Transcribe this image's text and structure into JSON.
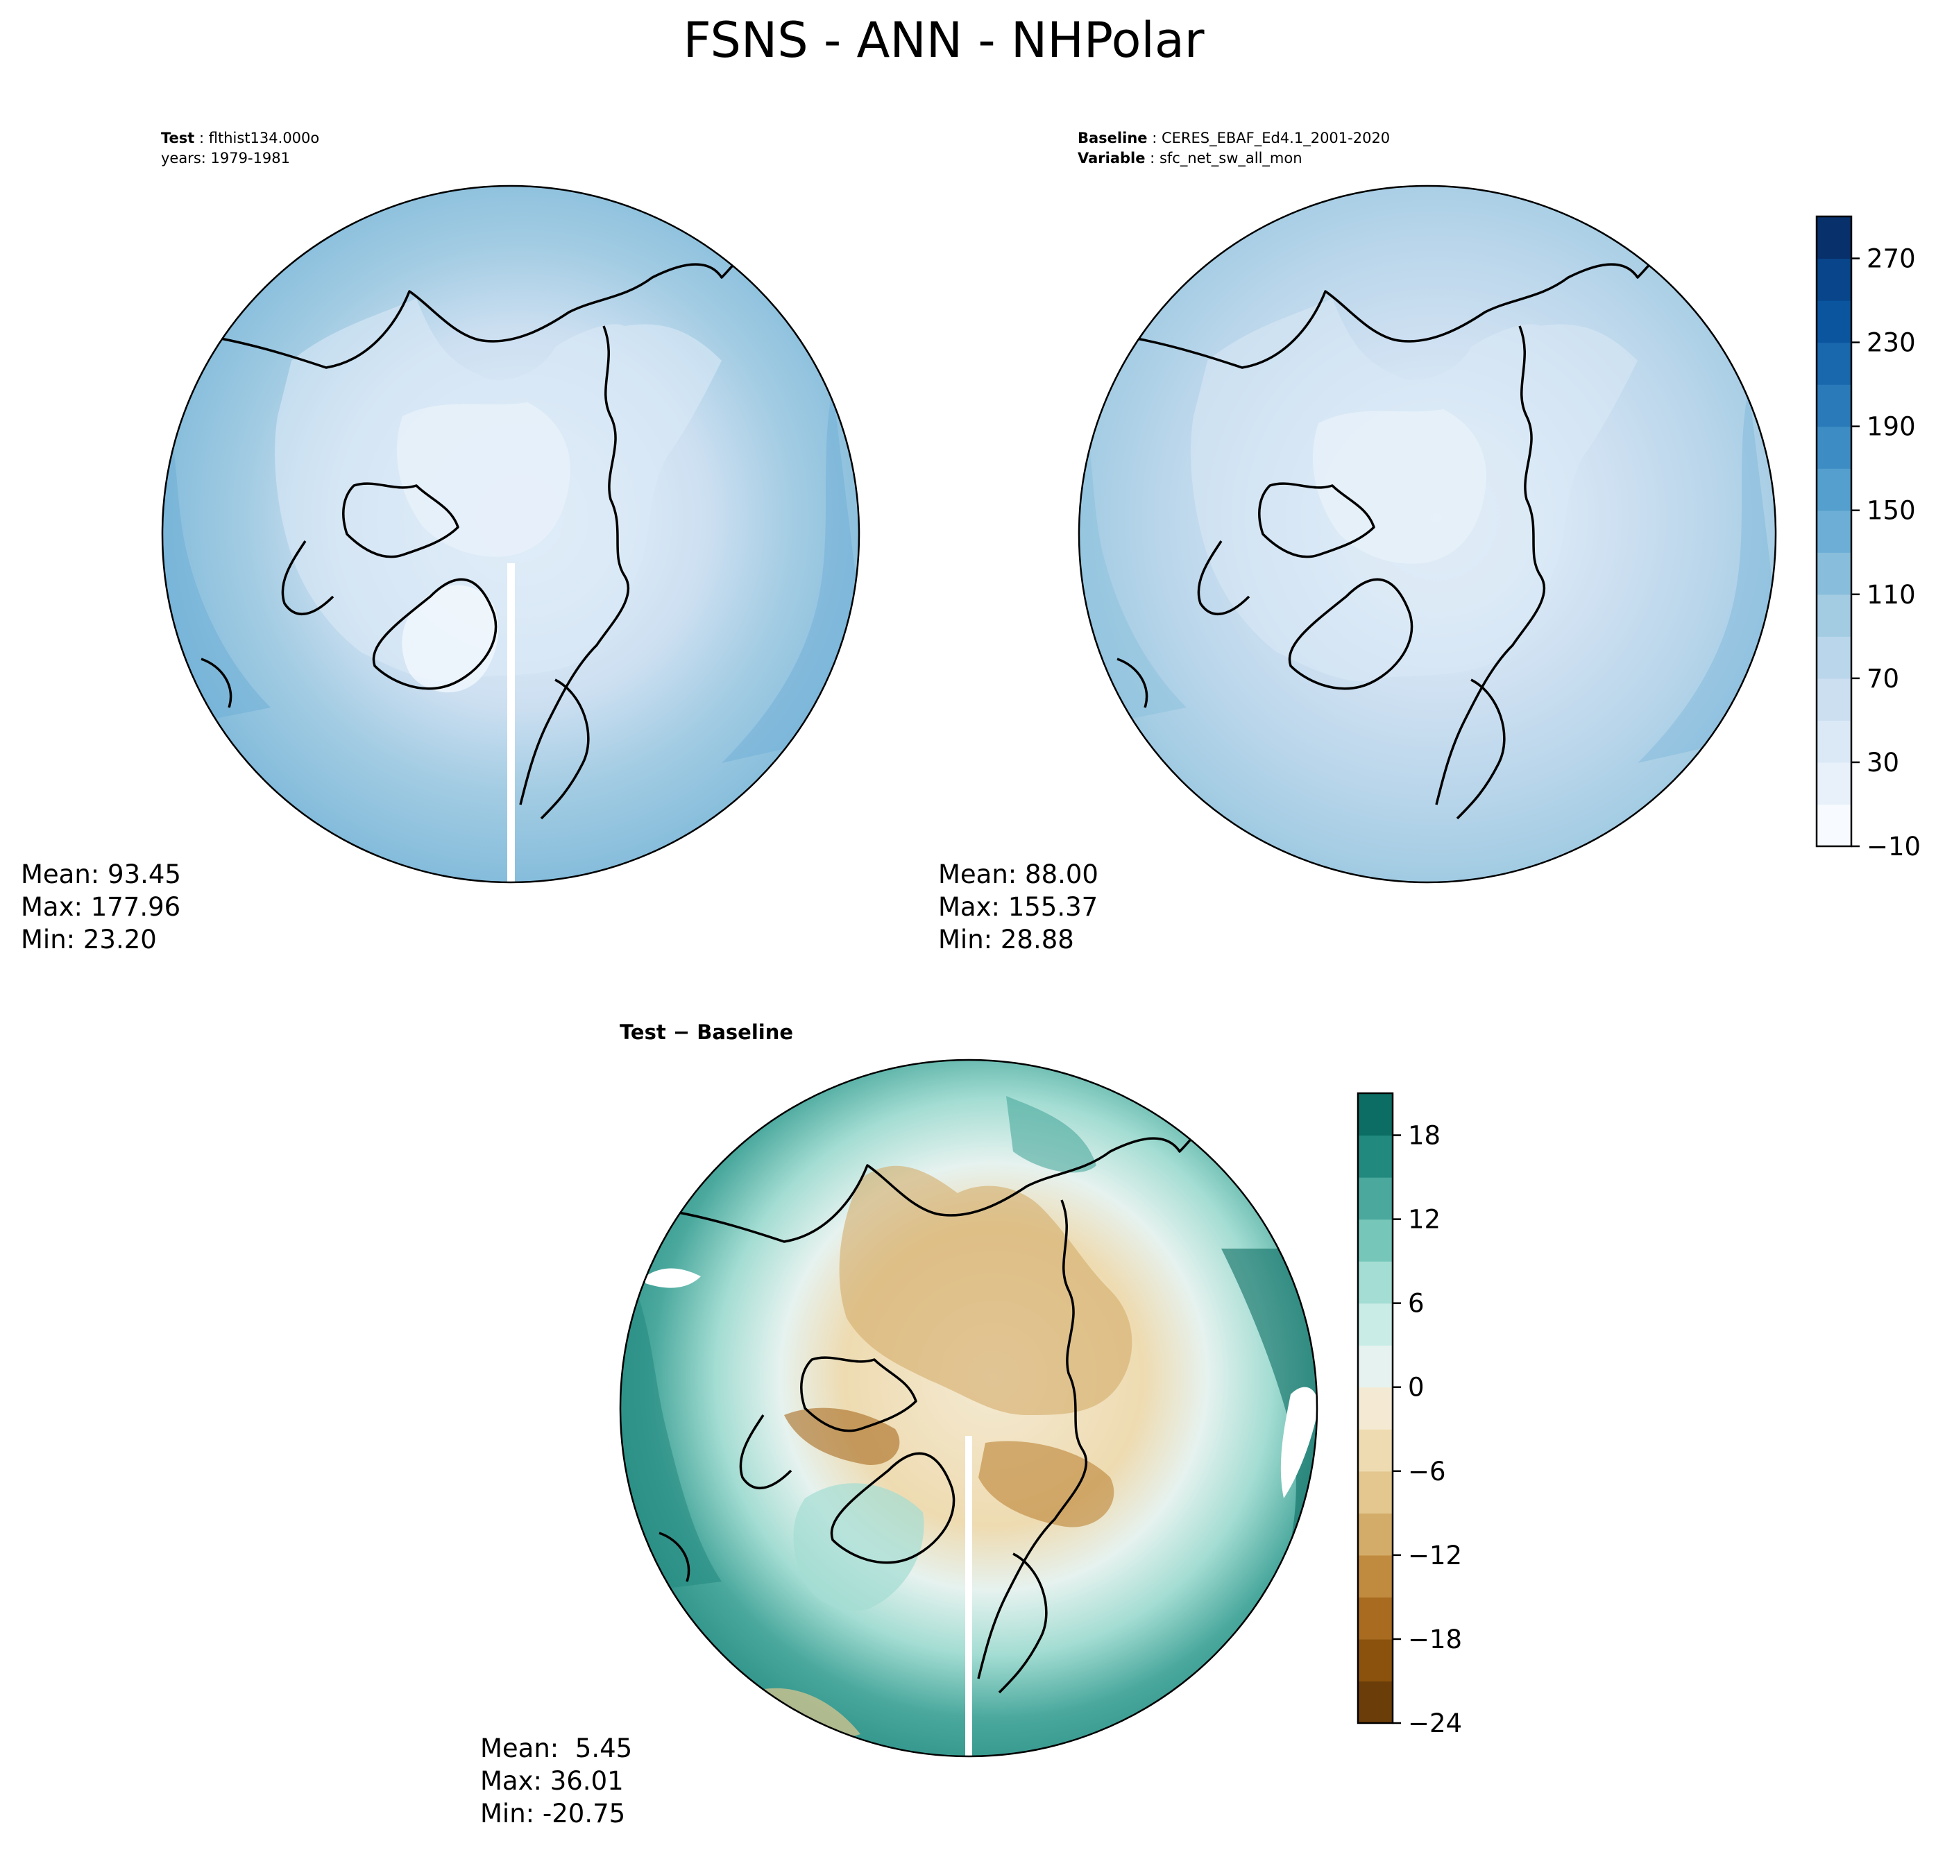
{
  "figure": {
    "title": "FSNS - ANN - NHPolar"
  },
  "chart_data": [
    {
      "type": "heatmap",
      "projection": "north-polar-stereographic",
      "panel": "test",
      "header": {
        "line1_label": "Test",
        "line1_value": "flthist134.000o",
        "line2_text": "years: 1979-1981"
      },
      "stats": {
        "mean": "Mean: 93.45",
        "max": "Max: 177.96",
        "min": "Min: 23.20"
      },
      "shared_colorbar": true
    },
    {
      "type": "heatmap",
      "projection": "north-polar-stereographic",
      "panel": "baseline",
      "header": {
        "line1_label": "Baseline",
        "line1_value": "CERES_EBAF_Ed4.1_2001-2020",
        "line2_label": "Variable",
        "line2_value": "sfc_net_sw_all_mon"
      },
      "stats": {
        "mean": "Mean: 88.00",
        "max": "Max: 155.37",
        "min": "Min: 28.88"
      },
      "colorbar": {
        "colormap": "Blues",
        "levels": [
          -10,
          10,
          30,
          50,
          70,
          90,
          110,
          130,
          150,
          170,
          190,
          210,
          230,
          250,
          270,
          290
        ],
        "tick_values": [
          -10,
          30,
          70,
          110,
          150,
          190,
          230,
          270
        ],
        "tick_labels": [
          "−10",
          "30",
          "70",
          "110",
          "150",
          "190",
          "230",
          "270"
        ],
        "colors": [
          "#f7fbff",
          "#e8f1fa",
          "#dbe9f6",
          "#ccdff1",
          "#bad6eb",
          "#a3cce3",
          "#88bedc",
          "#6caed6",
          "#549fcd",
          "#3d8dc4",
          "#2a7ab9",
          "#1967ad",
          "#0b559f",
          "#08458a",
          "#08306b"
        ]
      }
    },
    {
      "type": "heatmap",
      "projection": "north-polar-stereographic",
      "panel": "difference",
      "header": {
        "title": "Test − Baseline"
      },
      "stats": {
        "mean": "Mean:  5.45",
        "max": "Max: 36.01",
        "min": "Min: -20.75"
      },
      "colorbar": {
        "colormap": "BrBG",
        "levels": [
          -24,
          -21,
          -18,
          -15,
          -12,
          -9,
          -6,
          -3,
          0,
          3,
          6,
          9,
          12,
          15,
          18,
          21
        ],
        "tick_values": [
          -24,
          -18,
          -12,
          -6,
          0,
          6,
          12,
          18
        ],
        "tick_labels": [
          "−24",
          "−18",
          "−12",
          "−6",
          "0",
          "6",
          "12",
          "18"
        ],
        "colors": [
          "#6a3d09",
          "#8a520c",
          "#a86b1f",
          "#c08b3f",
          "#d3ac69",
          "#e3c78e",
          "#eedbb1",
          "#f4ead3",
          "#e6f2ef",
          "#c9ece6",
          "#a4ddd3",
          "#76c7ba",
          "#4aa89d",
          "#22897f",
          "#0b6d63",
          "#0f4b42"
        ]
      }
    }
  ]
}
